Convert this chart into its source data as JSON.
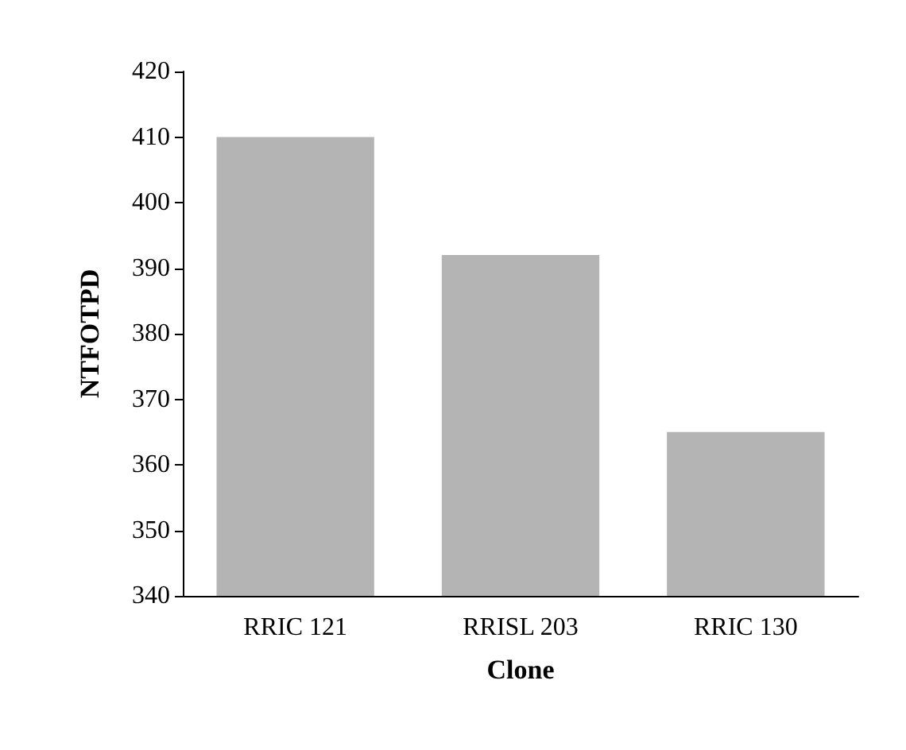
{
  "chart_data": {
    "type": "bar",
    "xlabel": "Clone",
    "ylabel": "NTFOTPD",
    "categories": [
      "RRIC 121",
      "RRISL 203",
      "RRIC 130"
    ],
    "values": [
      410,
      392,
      365
    ],
    "color": "#b4b4b4",
    "ylim": [
      340,
      420
    ],
    "yticks": [
      340,
      350,
      360,
      370,
      380,
      390,
      400,
      410,
      420
    ],
    "grid": false
  }
}
